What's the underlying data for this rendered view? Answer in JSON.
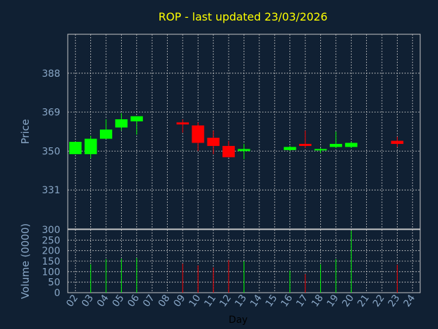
{
  "chart_data": [
    {
      "type": "candlestick",
      "title": "ROP - last updated 23/03/2026",
      "ylabel": "Price",
      "ylim": [
        312,
        407
      ],
      "yticks": [
        331,
        350,
        369,
        388
      ],
      "grid": true,
      "days": [
        "02",
        "03",
        "04",
        "05",
        "06",
        "07",
        "08",
        "09",
        "10",
        "11",
        "12",
        "13",
        "14",
        "15",
        "16",
        "17",
        "18",
        "19",
        "20",
        "21",
        "22",
        "23",
        "24"
      ],
      "candles": [
        {
          "day": "02",
          "open": 348.5,
          "close": 354.5,
          "high": 354.5,
          "low": 348.5
        },
        {
          "day": "03",
          "open": 348.5,
          "close": 356.0,
          "high": 357.5,
          "low": 346.5
        },
        {
          "day": "04",
          "open": 356.0,
          "close": 360.5,
          "high": 365.5,
          "low": 356.0
        },
        {
          "day": "05",
          "open": 361.5,
          "close": 365.5,
          "high": 368.5,
          "low": 360.0
        },
        {
          "day": "06",
          "open": 364.5,
          "close": 367.0,
          "high": 367.0,
          "low": 358.0
        },
        {
          "day": "09",
          "open": 364.0,
          "close": 363.0,
          "high": 365.5,
          "low": 359.0
        },
        {
          "day": "10",
          "open": 362.5,
          "close": 354.0,
          "high": 364.0,
          "low": 350.0
        },
        {
          "day": "11",
          "open": 356.5,
          "close": 352.5,
          "high": 360.0,
          "low": 348.5
        },
        {
          "day": "12",
          "open": 352.5,
          "close": 347.0,
          "high": 355.0,
          "low": 347.0
        },
        {
          "day": "13",
          "open": 350.0,
          "close": 351.0,
          "high": 353.5,
          "low": 346.0
        },
        {
          "day": "16",
          "open": 350.5,
          "close": 352.0,
          "high": 352.5,
          "low": 350.0
        },
        {
          "day": "17",
          "open": 353.5,
          "close": 352.5,
          "high": 360.0,
          "low": 351.5
        },
        {
          "day": "18",
          "open": 350.5,
          "close": 351.0,
          "high": 351.5,
          "low": 349.0
        },
        {
          "day": "19",
          "open": 352.0,
          "close": 353.5,
          "high": 359.5,
          "low": 351.5
        },
        {
          "day": "20",
          "open": 352.0,
          "close": 354.0,
          "high": 354.5,
          "low": 351.5
        },
        {
          "day": "23",
          "open": 355.0,
          "close": 353.5,
          "high": 357.0,
          "low": 352.0
        }
      ],
      "colors": {
        "up": "#00ff00",
        "down": "#ff0000",
        "background": "#102033",
        "grid": "#c8c8c8",
        "text": "#8aa8c8",
        "title": "#ffff00"
      }
    },
    {
      "type": "bar",
      "ylabel": "Volume (0000)",
      "xlabel": "Day",
      "ylim": [
        0,
        300
      ],
      "yticks": [
        0,
        50,
        100,
        150,
        200,
        250,
        300
      ],
      "categories": [
        "02",
        "03",
        "04",
        "05",
        "06",
        "07",
        "08",
        "09",
        "10",
        "11",
        "12",
        "13",
        "14",
        "15",
        "16",
        "17",
        "18",
        "19",
        "20",
        "21",
        "22",
        "23",
        "24"
      ],
      "bars": [
        {
          "day": "03",
          "value": 135,
          "direction": "up"
        },
        {
          "day": "04",
          "value": 160,
          "direction": "up"
        },
        {
          "day": "05",
          "value": 162,
          "direction": "up"
        },
        {
          "day": "06",
          "value": 165,
          "direction": "up"
        },
        {
          "day": "09",
          "value": 138,
          "direction": "down"
        },
        {
          "day": "10",
          "value": 130,
          "direction": "down"
        },
        {
          "day": "11",
          "value": 120,
          "direction": "down"
        },
        {
          "day": "12",
          "value": 155,
          "direction": "down"
        },
        {
          "day": "13",
          "value": 150,
          "direction": "up"
        },
        {
          "day": "16",
          "value": 105,
          "direction": "up"
        },
        {
          "day": "17",
          "value": 88,
          "direction": "down"
        },
        {
          "day": "18",
          "value": 135,
          "direction": "up"
        },
        {
          "day": "19",
          "value": 160,
          "direction": "up"
        },
        {
          "day": "20",
          "value": 295,
          "direction": "up"
        },
        {
          "day": "23",
          "value": 133,
          "direction": "down"
        }
      ]
    }
  ]
}
